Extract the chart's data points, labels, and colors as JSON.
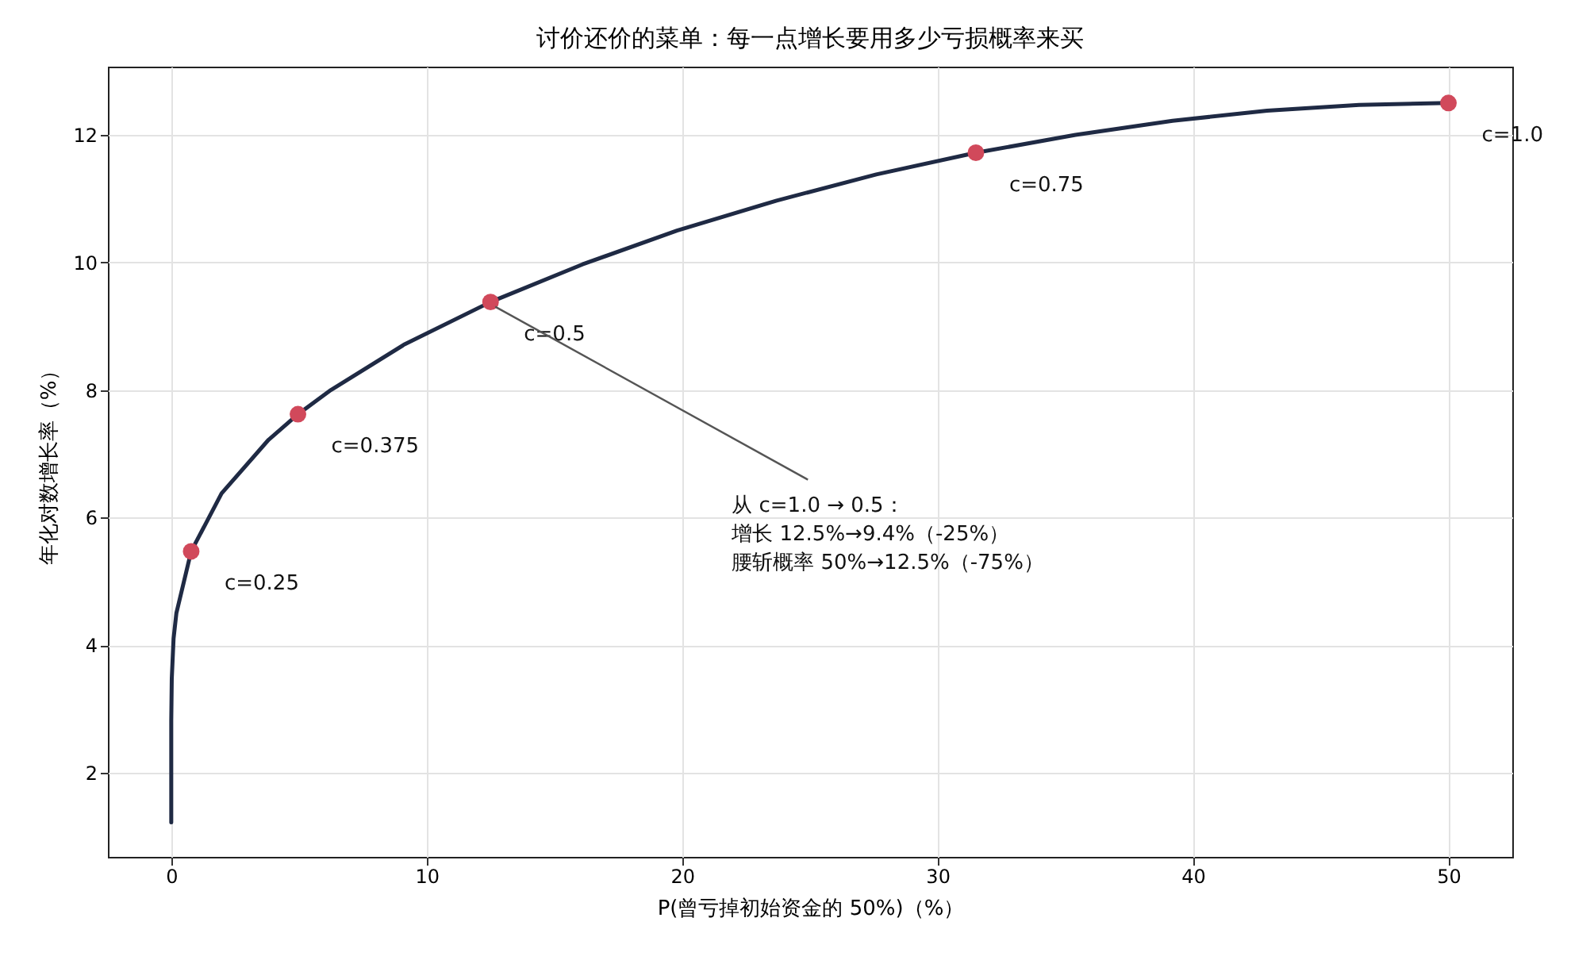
{
  "chart_data": {
    "type": "line",
    "title": "讨价还价的菜单：每一点增长要用多少亏损概率来买",
    "xlabel": "P(曾亏掉初始资金的 50%)（%）",
    "ylabel": "年化对数增长率（%）",
    "series": [
      {
        "color": "#1f2a44",
        "x": [
          0,
          0,
          0,
          0,
          0.02,
          0.09,
          0.2,
          0.78,
          1.97,
          3.81,
          4.96,
          6.25,
          9.15,
          12.5,
          16.1,
          19.8,
          23.7,
          27.6,
          31.5,
          35.4,
          39.2,
          42.9,
          46.5,
          50
        ],
        "values": [
          1.22,
          1.92,
          2.38,
          2.82,
          3.47,
          4.1,
          4.5,
          5.47,
          6.38,
          7.22,
          7.62,
          8.0,
          8.72,
          9.38,
          9.97,
          10.5,
          10.97,
          11.38,
          11.72,
          12.0,
          12.22,
          12.38,
          12.47,
          12.5
        ]
      },
      {
        "type": "scatter",
        "color": "#d1495b",
        "x": [
          0.78,
          4.96,
          12.5,
          31.5,
          50
        ],
        "values": [
          5.47,
          7.62,
          9.38,
          11.72,
          12.5
        ]
      }
    ],
    "annotations": [
      {
        "text": "c=0.25",
        "x": 0.78,
        "y": 5.47
      },
      {
        "text": "c=0.375",
        "x": 4.96,
        "y": 7.62
      },
      {
        "text": "c=0.5",
        "x": 12.5,
        "y": 9.38
      },
      {
        "text": "c=0.75",
        "x": 31.5,
        "y": 11.72
      },
      {
        "text": "c=1.0",
        "x": 50,
        "y": 12.5
      },
      {
        "text": "从 c=1.0 → 0.5：",
        "x": 12.5,
        "y": 9.38
      },
      "增长 12.5%→9.4%（-25%）",
      "腰斩概率 50%→12.5%（-75%）"
    ],
    "xlim": [
      -2.48,
      52.5
    ],
    "ylim": [
      0.68,
      13.07
    ],
    "xticks": [
      0,
      10,
      20,
      30,
      40,
      50
    ],
    "yticks": [
      2,
      4,
      6,
      8,
      10,
      12
    ],
    "grid": true
  }
}
